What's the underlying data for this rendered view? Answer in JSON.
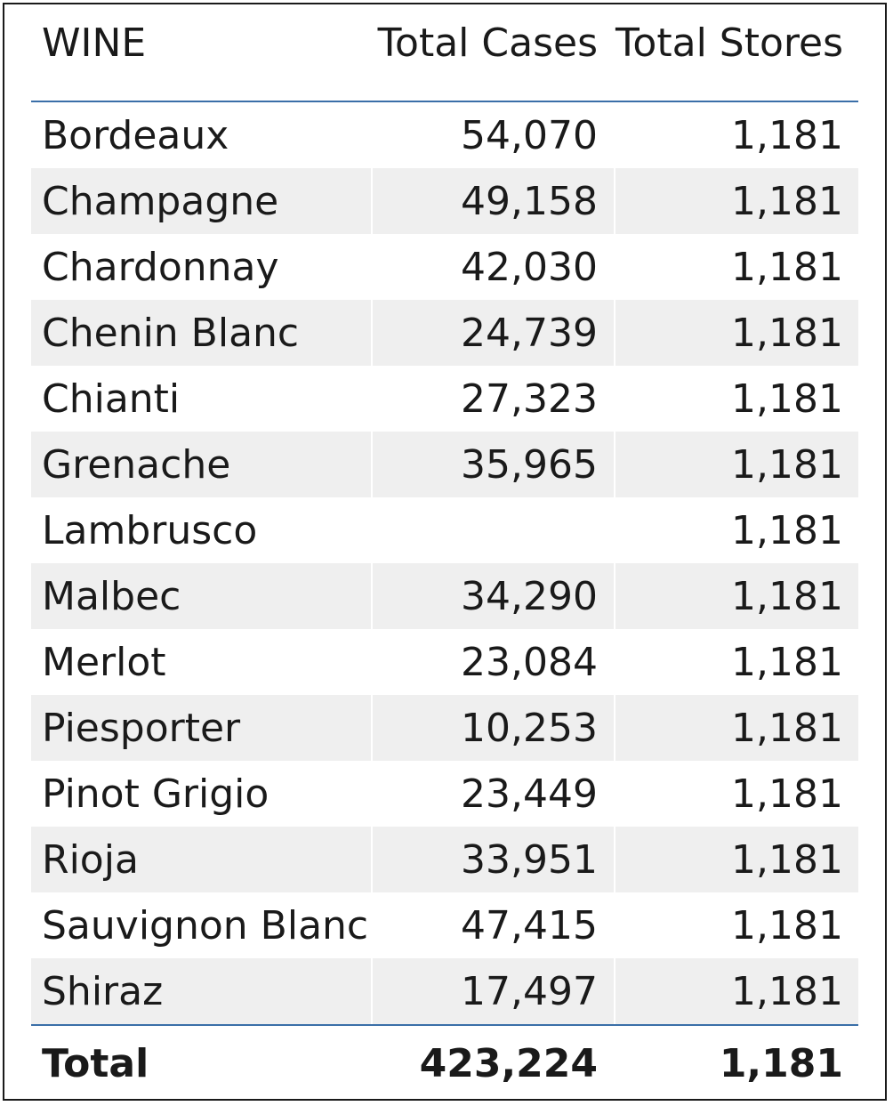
{
  "chart_data": {
    "type": "table",
    "columns": [
      "WINE",
      "Total Cases",
      "Total Stores"
    ],
    "rows": [
      {
        "wine": "Bordeaux",
        "cases": "54,070",
        "stores": "1,181"
      },
      {
        "wine": "Champagne",
        "cases": "49,158",
        "stores": "1,181"
      },
      {
        "wine": "Chardonnay",
        "cases": "42,030",
        "stores": "1,181"
      },
      {
        "wine": "Chenin Blanc",
        "cases": "24,739",
        "stores": "1,181"
      },
      {
        "wine": "Chianti",
        "cases": "27,323",
        "stores": "1,181"
      },
      {
        "wine": "Grenache",
        "cases": "35,965",
        "stores": "1,181"
      },
      {
        "wine": "Lambrusco",
        "cases": "",
        "stores": "1,181"
      },
      {
        "wine": "Malbec",
        "cases": "34,290",
        "stores": "1,181"
      },
      {
        "wine": "Merlot",
        "cases": "23,084",
        "stores": "1,181"
      },
      {
        "wine": "Piesporter",
        "cases": "10,253",
        "stores": "1,181"
      },
      {
        "wine": "Pinot Grigio",
        "cases": "23,449",
        "stores": "1,181"
      },
      {
        "wine": "Rioja",
        "cases": "33,951",
        "stores": "1,181"
      },
      {
        "wine": "Sauvignon Blanc",
        "cases": "47,415",
        "stores": "1,181"
      },
      {
        "wine": "Shiraz",
        "cases": "17,497",
        "stores": "1,181"
      }
    ],
    "total": {
      "label": "Total",
      "cases": "423,224",
      "stores": "1,181"
    }
  },
  "colors": {
    "band": "#efefef",
    "rule": "#3a6fa8",
    "text": "#1a1a1a"
  }
}
